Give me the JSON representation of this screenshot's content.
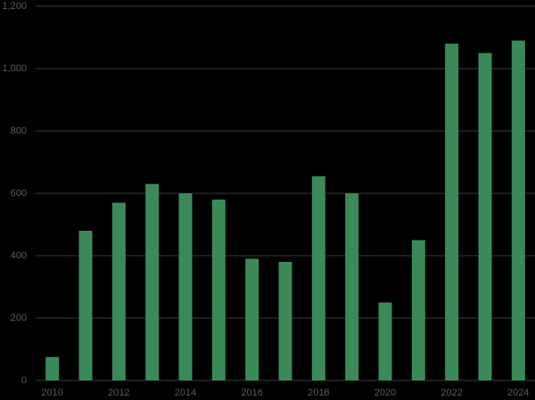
{
  "chart_data": {
    "type": "bar",
    "categories": [
      "2010",
      null,
      "2012",
      null,
      "2014",
      null,
      "2016",
      null,
      "2018",
      null,
      "2020",
      null,
      "2022",
      null,
      "2024"
    ],
    "values": [
      75,
      480,
      570,
      630,
      600,
      580,
      390,
      380,
      655,
      600,
      250,
      450,
      1080,
      1050,
      1090
    ],
    "color": "#3a8a57",
    "ylim": [
      0,
      1200
    ],
    "yticks": [
      0,
      200,
      400,
      600,
      800,
      {
        "value": 1000,
        "label": "1,000"
      },
      {
        "value": 1200,
        "label": "1,200"
      }
    ],
    "grid": true
  }
}
